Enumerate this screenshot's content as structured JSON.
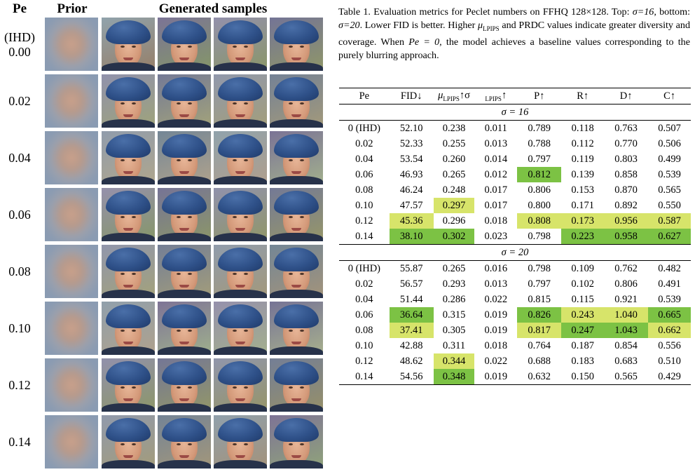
{
  "figure": {
    "headers": {
      "pe": "Pe",
      "prior": "Prior",
      "generated": "Generated samples"
    },
    "rows": [
      {
        "label_line1": "(IHD)",
        "label_line2": "0.00"
      },
      {
        "label_line1": "",
        "label_line2": "0.02"
      },
      {
        "label_line1": "",
        "label_line2": "0.04"
      },
      {
        "label_line1": "",
        "label_line2": "0.06"
      },
      {
        "label_line1": "",
        "label_line2": "0.08"
      },
      {
        "label_line1": "",
        "label_line2": "0.10"
      },
      {
        "label_line1": "",
        "label_line2": "0.12"
      },
      {
        "label_line1": "",
        "label_line2": "0.14"
      }
    ]
  },
  "caption": {
    "p1": "Table 1. Evaluation metrics for Peclet numbers on FFHQ 128×128. Top: ",
    "sigma16": "σ=16",
    "p2": ", bottom: ",
    "sigma20": "σ=20",
    "p3": ". Lower FID is better. Higher ",
    "mu": "μ",
    "mu_sub": "LPIPS",
    "p4": " and PRDC values indicate greater diversity and coverage. When ",
    "pe0": "Pe = 0",
    "p5": ", the model achieves a baseline values corresponding to the purely blurring approach."
  },
  "table": {
    "headers": [
      "Pe",
      "FID↓",
      "μ",
      "LPIPS",
      "↑σ",
      "LPIPS",
      "↑",
      "P↑",
      "R↑",
      "D↑",
      "C↑"
    ],
    "section_top": "σ = 16",
    "section_bottom": "σ = 20",
    "top_rows": [
      [
        "0 (IHD)",
        "52.10",
        "0.238",
        "0.011",
        "0.789",
        "0.118",
        "0.763",
        "0.507"
      ],
      [
        "0.02",
        "52.33",
        "0.255",
        "0.013",
        "0.788",
        "0.112",
        "0.770",
        "0.506"
      ],
      [
        "0.04",
        "53.54",
        "0.260",
        "0.014",
        "0.797",
        "0.119",
        "0.803",
        "0.499"
      ],
      [
        "0.06",
        "46.93",
        "0.265",
        "0.012",
        "0.812",
        "0.139",
        "0.858",
        "0.539"
      ],
      [
        "0.08",
        "46.24",
        "0.248",
        "0.017",
        "0.806",
        "0.153",
        "0.870",
        "0.565"
      ],
      [
        "0.10",
        "47.57",
        "0.297",
        "0.017",
        "0.800",
        "0.171",
        "0.892",
        "0.550"
      ],
      [
        "0.12",
        "45.36",
        "0.296",
        "0.018",
        "0.808",
        "0.173",
        "0.956",
        "0.587"
      ],
      [
        "0.14",
        "38.10",
        "0.302",
        "0.023",
        "0.798",
        "0.223",
        "0.958",
        "0.627"
      ]
    ],
    "bottom_rows": [
      [
        "0 (IHD)",
        "55.87",
        "0.265",
        "0.016",
        "0.798",
        "0.109",
        "0.762",
        "0.482"
      ],
      [
        "0.02",
        "56.57",
        "0.293",
        "0.013",
        "0.797",
        "0.102",
        "0.806",
        "0.491"
      ],
      [
        "0.04",
        "51.44",
        "0.286",
        "0.022",
        "0.815",
        "0.115",
        "0.921",
        "0.539"
      ],
      [
        "0.06",
        "36.64",
        "0.315",
        "0.019",
        "0.826",
        "0.243",
        "1.040",
        "0.665"
      ],
      [
        "0.08",
        "37.41",
        "0.305",
        "0.019",
        "0.817",
        "0.247",
        "1.043",
        "0.662"
      ],
      [
        "0.10",
        "42.88",
        "0.311",
        "0.018",
        "0.764",
        "0.187",
        "0.854",
        "0.556"
      ],
      [
        "0.12",
        "48.62",
        "0.344",
        "0.022",
        "0.688",
        "0.183",
        "0.683",
        "0.510"
      ],
      [
        "0.14",
        "54.56",
        "0.348",
        "0.019",
        "0.632",
        "0.150",
        "0.565",
        "0.429"
      ]
    ],
    "highlights": {
      "green": "#7cc244",
      "yellow": "#d7e46a",
      "top": [
        {
          "row": 3,
          "col": 4,
          "color": "green"
        },
        {
          "row": 5,
          "col": 2,
          "color": "yellow"
        },
        {
          "row": 6,
          "col": 1,
          "color": "yellow"
        },
        {
          "row": 6,
          "col": 4,
          "color": "yellow"
        },
        {
          "row": 6,
          "col": 5,
          "color": "yellow"
        },
        {
          "row": 6,
          "col": 6,
          "color": "yellow"
        },
        {
          "row": 6,
          "col": 7,
          "color": "yellow"
        },
        {
          "row": 7,
          "col": 1,
          "color": "green"
        },
        {
          "row": 7,
          "col": 2,
          "color": "green"
        },
        {
          "row": 7,
          "col": 5,
          "color": "green"
        },
        {
          "row": 7,
          "col": 6,
          "color": "green"
        },
        {
          "row": 7,
          "col": 7,
          "color": "green"
        }
      ],
      "bottom": [
        {
          "row": 3,
          "col": 1,
          "color": "green"
        },
        {
          "row": 3,
          "col": 4,
          "color": "green"
        },
        {
          "row": 3,
          "col": 5,
          "color": "yellow"
        },
        {
          "row": 3,
          "col": 6,
          "color": "yellow"
        },
        {
          "row": 3,
          "col": 7,
          "color": "green"
        },
        {
          "row": 4,
          "col": 1,
          "color": "yellow"
        },
        {
          "row": 4,
          "col": 4,
          "color": "yellow"
        },
        {
          "row": 4,
          "col": 5,
          "color": "green"
        },
        {
          "row": 4,
          "col": 6,
          "color": "green"
        },
        {
          "row": 4,
          "col": 7,
          "color": "yellow"
        },
        {
          "row": 6,
          "col": 2,
          "color": "yellow"
        },
        {
          "row": 7,
          "col": 2,
          "color": "green"
        }
      ]
    }
  }
}
